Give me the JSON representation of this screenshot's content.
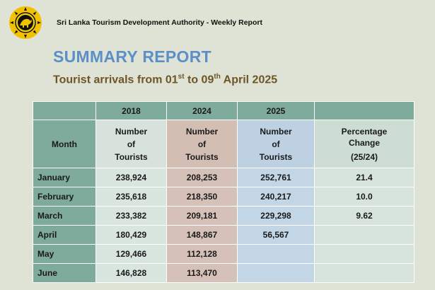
{
  "header": {
    "org_title": "Sri Lanka Tourism Development Authority - Weekly Report"
  },
  "report": {
    "title": "SUMMARY REPORT",
    "subtitle_main": "Tourist arrivals from 01",
    "subtitle_sup1": "st",
    "subtitle_mid": " to 09",
    "subtitle_sup2": "th",
    "subtitle_end": " April 2025"
  },
  "table": {
    "years": [
      "2018",
      "2024",
      "2025"
    ],
    "month_header": "Month",
    "col_header_line1": "Number",
    "col_header_line2": "of",
    "col_header_line3": "Tourists",
    "pct_header_line1": "Percentage",
    "pct_header_line2": "Change",
    "pct_header_line3": "(25/24)",
    "rows": [
      {
        "month": "January",
        "y2018": "238,924",
        "y2024": "208,253",
        "y2025": "252,761",
        "pct": "21.4"
      },
      {
        "month": "February",
        "y2018": "235,618",
        "y2024": "218,350",
        "y2025": "240,217",
        "pct": "10.0"
      },
      {
        "month": "March",
        "y2018": "233,382",
        "y2024": "209,181",
        "y2025": "229,298",
        "pct": "9.62"
      },
      {
        "month": "April",
        "y2018": "180,429",
        "y2024": "148,867",
        "y2025": "56,567",
        "pct": ""
      },
      {
        "month": "May",
        "y2018": "129,466",
        "y2024": "112,128",
        "y2025": "",
        "pct": ""
      },
      {
        "month": "June",
        "y2018": "146,828",
        "y2024": "113,470",
        "y2025": "",
        "pct": ""
      }
    ]
  },
  "colors": {
    "title": "#5b8fc6",
    "subtitle": "#6e5526",
    "teal_header": "#7eab9b",
    "col_2018": "#d9e5df",
    "col_2024": "#d5c1b8",
    "col_2025": "#c3d6e6"
  },
  "icons": {
    "logo": "sri-lanka-lion-emblem-icon"
  }
}
